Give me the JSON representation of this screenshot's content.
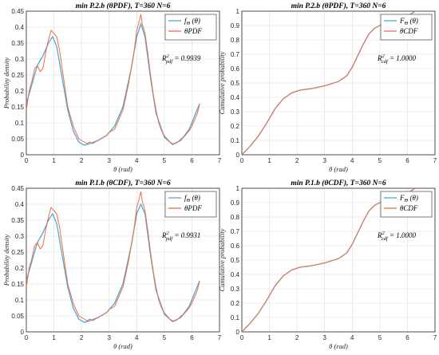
{
  "colors": {
    "model": "#4da9d6",
    "empirical": "#ee6e46",
    "grid": "#dcdcdc",
    "axis": "#262626"
  },
  "chart_data": [
    {
      "id": "p1",
      "type": "line",
      "title": "min P.2.b (θPDF), T=360 N=6",
      "xlabel": "θ (rad)",
      "ylabel": "Probability density",
      "xlim": [
        0,
        7
      ],
      "ylim": [
        0,
        0.45
      ],
      "xticks": [
        "0",
        "1",
        "2",
        "3",
        "4",
        "5",
        "6",
        "7"
      ],
      "yticks": [
        "0",
        "0.05",
        "0.1",
        "0.15",
        "0.2",
        "0.25",
        "0.3",
        "0.35",
        "0.4",
        "0.45"
      ],
      "grid": true,
      "legend_position": "top-right",
      "series": [
        {
          "name": "fΘ (θ)",
          "legend_main": "f",
          "legend_sub": "Θ",
          "legend_rest": " (θ)",
          "role": "model",
          "x": [
            0,
            0.2,
            0.4,
            0.6,
            0.8,
            0.95,
            1.1,
            1.3,
            1.5,
            1.7,
            1.9,
            2.1,
            2.3,
            2.6,
            2.9,
            3.2,
            3.5,
            3.8,
            4.0,
            4.15,
            4.3,
            4.5,
            4.7,
            5.0,
            5.3,
            5.6,
            5.9,
            6.28
          ],
          "y": [
            0.16,
            0.22,
            0.28,
            0.31,
            0.35,
            0.37,
            0.34,
            0.24,
            0.14,
            0.075,
            0.04,
            0.03,
            0.035,
            0.045,
            0.06,
            0.09,
            0.15,
            0.27,
            0.37,
            0.41,
            0.37,
            0.24,
            0.13,
            0.055,
            0.032,
            0.045,
            0.08,
            0.16
          ]
        },
        {
          "name": "θPDF",
          "role": "empirical",
          "x": [
            0,
            0.1,
            0.2,
            0.3,
            0.4,
            0.5,
            0.6,
            0.7,
            0.8,
            0.9,
            1.0,
            1.1,
            1.2,
            1.3,
            1.4,
            1.5,
            1.6,
            1.7,
            1.8,
            1.9,
            2.0,
            2.1,
            2.2,
            2.3,
            2.4,
            2.5,
            2.6,
            2.7,
            2.8,
            2.9,
            3.0,
            3.1,
            3.2,
            3.3,
            3.4,
            3.5,
            3.6,
            3.7,
            3.8,
            3.9,
            4.0,
            4.1,
            4.15,
            4.2,
            4.3,
            4.4,
            4.5,
            4.6,
            4.7,
            4.8,
            4.9,
            5.0,
            5.1,
            5.2,
            5.3,
            5.4,
            5.5,
            5.6,
            5.7,
            5.8,
            5.9,
            6.0,
            6.1,
            6.2,
            6.28
          ],
          "y": [
            0.14,
            0.2,
            0.23,
            0.27,
            0.28,
            0.26,
            0.27,
            0.32,
            0.36,
            0.39,
            0.38,
            0.37,
            0.33,
            0.27,
            0.21,
            0.15,
            0.12,
            0.09,
            0.07,
            0.05,
            0.045,
            0.04,
            0.035,
            0.04,
            0.035,
            0.04,
            0.045,
            0.05,
            0.055,
            0.06,
            0.07,
            0.075,
            0.08,
            0.1,
            0.12,
            0.14,
            0.18,
            0.22,
            0.27,
            0.32,
            0.39,
            0.42,
            0.44,
            0.41,
            0.38,
            0.32,
            0.25,
            0.19,
            0.14,
            0.1,
            0.075,
            0.06,
            0.05,
            0.04,
            0.035,
            0.035,
            0.04,
            0.05,
            0.055,
            0.065,
            0.075,
            0.09,
            0.11,
            0.13,
            0.16
          ]
        }
      ],
      "annotation": {
        "main": "R",
        "sup": "2",
        "sub": "pdf",
        "rest": " = 0.9939"
      }
    },
    {
      "id": "p2",
      "type": "line",
      "title": "min P.2.b (θPDF), T=360 N=6",
      "xlabel": "θ (rad)",
      "ylabel": "Cumulative probability",
      "xlim": [
        0,
        7
      ],
      "ylim": [
        0,
        1
      ],
      "xticks": [
        "0",
        "1",
        "2",
        "3",
        "4",
        "5",
        "6",
        "7"
      ],
      "yticks": [
        "0",
        "0.1",
        "0.2",
        "0.3",
        "0.4",
        "0.5",
        "0.6",
        "0.7",
        "0.8",
        "0.9",
        "1"
      ],
      "grid": true,
      "legend_position": "top-right",
      "series": [
        {
          "name": "FΘ (θ)",
          "legend_main": "F",
          "legend_sub": "Θ",
          "legend_rest": " (θ)",
          "role": "model",
          "x": [
            0,
            0.3,
            0.6,
            0.9,
            1.2,
            1.5,
            1.8,
            2.1,
            2.5,
            3.0,
            3.5,
            3.8,
            4.0,
            4.2,
            4.4,
            4.6,
            4.8,
            5.1,
            5.5,
            6.0,
            6.28
          ],
          "y": [
            0,
            0.06,
            0.13,
            0.22,
            0.32,
            0.39,
            0.43,
            0.45,
            0.46,
            0.48,
            0.51,
            0.55,
            0.61,
            0.69,
            0.77,
            0.84,
            0.88,
            0.91,
            0.93,
            0.965,
            1.0
          ]
        },
        {
          "name": "θCDF",
          "role": "empirical",
          "x": [
            0,
            0.3,
            0.6,
            0.9,
            1.2,
            1.5,
            1.8,
            2.1,
            2.5,
            3.0,
            3.5,
            3.8,
            4.0,
            4.2,
            4.4,
            4.6,
            4.8,
            5.1,
            5.5,
            6.0,
            6.28
          ],
          "y": [
            0,
            0.06,
            0.13,
            0.22,
            0.32,
            0.39,
            0.43,
            0.45,
            0.46,
            0.48,
            0.51,
            0.55,
            0.61,
            0.69,
            0.77,
            0.84,
            0.88,
            0.91,
            0.93,
            0.965,
            1.0
          ]
        }
      ],
      "annotation": {
        "main": "R",
        "sup": "2",
        "sub": "cdf",
        "rest": " = 1.0000"
      }
    },
    {
      "id": "p3",
      "type": "line",
      "title": "min P.1.b (θCDF), T=360 N=6",
      "xlabel": "θ (rad)",
      "ylabel": "Probability density",
      "xlim": [
        0,
        7
      ],
      "ylim": [
        0,
        0.45
      ],
      "xticks": [
        "0",
        "1",
        "2",
        "3",
        "4",
        "5",
        "6",
        "7"
      ],
      "yticks": [
        "0",
        "0.05",
        "0.1",
        "0.15",
        "0.2",
        "0.25",
        "0.3",
        "0.35",
        "0.4",
        "0.45"
      ],
      "grid": true,
      "legend_position": "top-right",
      "series": [
        {
          "name": "fΘ (θ)",
          "legend_main": "f",
          "legend_sub": "Θ",
          "legend_rest": " (θ)",
          "role": "model",
          "x": [
            0,
            0.2,
            0.4,
            0.6,
            0.8,
            0.95,
            1.1,
            1.3,
            1.5,
            1.7,
            1.9,
            2.1,
            2.3,
            2.6,
            2.9,
            3.2,
            3.5,
            3.8,
            4.0,
            4.15,
            4.3,
            4.5,
            4.7,
            5.0,
            5.3,
            5.6,
            5.9,
            6.28
          ],
          "y": [
            0.16,
            0.22,
            0.28,
            0.31,
            0.35,
            0.37,
            0.34,
            0.24,
            0.14,
            0.075,
            0.04,
            0.03,
            0.035,
            0.045,
            0.06,
            0.09,
            0.15,
            0.27,
            0.37,
            0.4,
            0.37,
            0.24,
            0.13,
            0.055,
            0.032,
            0.045,
            0.08,
            0.16
          ]
        },
        {
          "name": "θPDF",
          "role": "empirical",
          "x": [
            0,
            0.1,
            0.2,
            0.3,
            0.4,
            0.5,
            0.6,
            0.7,
            0.8,
            0.9,
            1.0,
            1.1,
            1.2,
            1.3,
            1.4,
            1.5,
            1.6,
            1.7,
            1.8,
            1.9,
            2.0,
            2.1,
            2.2,
            2.3,
            2.4,
            2.5,
            2.6,
            2.7,
            2.8,
            2.9,
            3.0,
            3.1,
            3.2,
            3.3,
            3.4,
            3.5,
            3.6,
            3.7,
            3.8,
            3.9,
            4.0,
            4.1,
            4.15,
            4.2,
            4.3,
            4.4,
            4.5,
            4.6,
            4.7,
            4.8,
            4.9,
            5.0,
            5.1,
            5.2,
            5.3,
            5.4,
            5.5,
            5.6,
            5.7,
            5.8,
            5.9,
            6.0,
            6.1,
            6.2,
            6.28
          ],
          "y": [
            0.14,
            0.2,
            0.23,
            0.27,
            0.28,
            0.26,
            0.27,
            0.32,
            0.36,
            0.39,
            0.38,
            0.37,
            0.33,
            0.27,
            0.21,
            0.15,
            0.12,
            0.09,
            0.07,
            0.05,
            0.045,
            0.04,
            0.035,
            0.04,
            0.035,
            0.04,
            0.045,
            0.05,
            0.055,
            0.06,
            0.07,
            0.075,
            0.08,
            0.1,
            0.12,
            0.14,
            0.18,
            0.22,
            0.27,
            0.32,
            0.39,
            0.42,
            0.44,
            0.41,
            0.38,
            0.32,
            0.25,
            0.19,
            0.14,
            0.1,
            0.075,
            0.06,
            0.05,
            0.04,
            0.035,
            0.035,
            0.04,
            0.05,
            0.055,
            0.065,
            0.075,
            0.09,
            0.11,
            0.13,
            0.16
          ]
        }
      ],
      "annotation": {
        "main": "R",
        "sup": "2",
        "sub": "pdf",
        "rest": " = 0.9931"
      }
    },
    {
      "id": "p4",
      "type": "line",
      "title": "min P.1.b (θCDF), T=360 N=6",
      "xlabel": "θ (rad)",
      "ylabel": "Cumulative probability",
      "xlim": [
        0,
        7
      ],
      "ylim": [
        0,
        1
      ],
      "xticks": [
        "0",
        "1",
        "2",
        "3",
        "4",
        "5",
        "6",
        "7"
      ],
      "yticks": [
        "0",
        "0.1",
        "0.2",
        "0.3",
        "0.4",
        "0.5",
        "0.6",
        "0.7",
        "0.8",
        "0.9",
        "1"
      ],
      "grid": true,
      "legend_position": "top-right",
      "series": [
        {
          "name": "FΘ (θ)",
          "legend_main": "F",
          "legend_sub": "Θ",
          "legend_rest": " (θ)",
          "role": "model",
          "x": [
            0,
            0.3,
            0.6,
            0.9,
            1.2,
            1.5,
            1.8,
            2.1,
            2.5,
            3.0,
            3.5,
            3.8,
            4.0,
            4.2,
            4.4,
            4.6,
            4.8,
            5.1,
            5.5,
            6.0,
            6.28
          ],
          "y": [
            0,
            0.06,
            0.13,
            0.22,
            0.32,
            0.39,
            0.43,
            0.45,
            0.46,
            0.48,
            0.51,
            0.55,
            0.61,
            0.69,
            0.77,
            0.84,
            0.88,
            0.91,
            0.93,
            0.965,
            1.0
          ]
        },
        {
          "name": "θCDF",
          "role": "empirical",
          "x": [
            0,
            0.3,
            0.6,
            0.9,
            1.2,
            1.5,
            1.8,
            2.1,
            2.5,
            3.0,
            3.5,
            3.8,
            4.0,
            4.2,
            4.4,
            4.6,
            4.8,
            5.1,
            5.5,
            6.0,
            6.28
          ],
          "y": [
            0,
            0.06,
            0.13,
            0.22,
            0.32,
            0.39,
            0.43,
            0.45,
            0.46,
            0.48,
            0.51,
            0.55,
            0.61,
            0.69,
            0.77,
            0.84,
            0.88,
            0.91,
            0.93,
            0.965,
            1.0
          ]
        }
      ],
      "annotation": {
        "main": "R",
        "sup": "2",
        "sub": "cdf",
        "rest": " = 1.0000"
      }
    }
  ]
}
